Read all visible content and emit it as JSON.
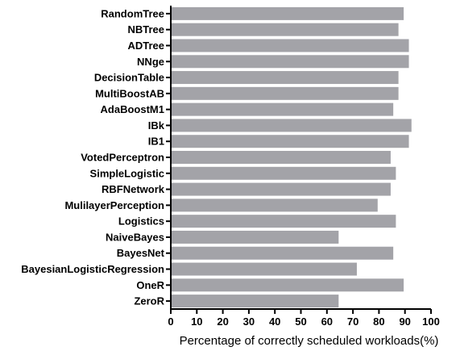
{
  "chart_data": {
    "type": "bar",
    "orientation": "horizontal",
    "categories": [
      "RandomTree",
      "NBTree",
      "ADTree",
      "NNge",
      "DecisionTable",
      "MultiBoostAB",
      "AdaBoostM1",
      "IBk",
      "IB1",
      "VotedPerceptron",
      "SimpleLogistic",
      "RBFNetwork",
      "MulilayerPerception",
      "Logistics",
      "NaiveBayes",
      "BayesNet",
      "BayesianLogisticRegression",
      "OneR",
      "ZeroR"
    ],
    "values": [
      89.5,
      87.5,
      91.5,
      91.5,
      87.5,
      87.5,
      85.5,
      92.5,
      91.5,
      84.5,
      86.5,
      84.5,
      79.5,
      86.5,
      64.5,
      85.5,
      71.5,
      89.5,
      64.5
    ],
    "xlabel": "Percentage of correctly scheduled workloads(%)",
    "ylabel": "",
    "xlim": [
      0,
      100
    ],
    "xticks": [
      "0",
      "10",
      "20",
      "30",
      "40",
      "50",
      "60",
      "70",
      "80",
      "90",
      "100"
    ],
    "grid": false,
    "legend": "none",
    "bar_color": "#a3a3a8"
  }
}
